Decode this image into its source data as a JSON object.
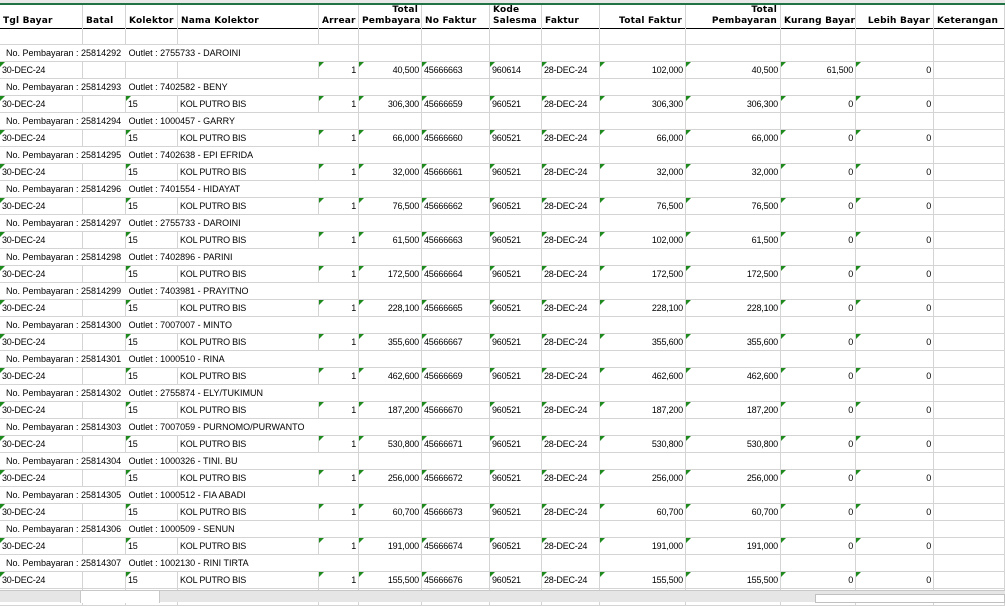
{
  "headers": [
    {
      "l1": "",
      "l2": "Tgl Bayar"
    },
    {
      "l1": "",
      "l2": "Batal"
    },
    {
      "l1": "",
      "l2": "Kolektor"
    },
    {
      "l1": "",
      "l2": "Nama Kolektor"
    },
    {
      "l1": "",
      "l2": "Arrear"
    },
    {
      "l1": "Total",
      "l2": "Pembayara"
    },
    {
      "l1": "",
      "l2": "No Faktur"
    },
    {
      "l1": "Kode",
      "l2": "Salesma"
    },
    {
      "l1": "",
      "l2": "Faktur"
    },
    {
      "l1": "",
      "l2": "Total Faktur"
    },
    {
      "l1": "Total",
      "l2": "Pembayaran"
    },
    {
      "l1": "",
      "l2": "Kurang Bayar"
    },
    {
      "l1": "",
      "l2": "Lebih Bayar"
    },
    {
      "l1": "",
      "l2": "Keterangan"
    }
  ],
  "label_prefix": "No. Pembayaran : ",
  "outlet_prefix": "Outlet : ",
  "records": [
    {
      "no": "25814292",
      "outlet": "2755733 - DAROINI",
      "tgl": "30-DEC-24",
      "kol": "",
      "nama": "",
      "arrear": "1",
      "bayar": "40,500",
      "faktur": "45666663",
      "sales": "960614",
      "tglf": "28-DEC-24",
      "tf": "102,000",
      "tp": "40,500",
      "kurang": "61,500",
      "lebih": "0"
    },
    {
      "no": "25814293",
      "outlet": "7402582 - BENY",
      "tgl": "30-DEC-24",
      "kol": "15",
      "nama": "KOL PUTRO BIS",
      "arrear": "1",
      "bayar": "306,300",
      "faktur": "45666659",
      "sales": "960521",
      "tglf": "28-DEC-24",
      "tf": "306,300",
      "tp": "306,300",
      "kurang": "0",
      "lebih": "0"
    },
    {
      "no": "25814294",
      "outlet": "1000457 - GARRY",
      "tgl": "30-DEC-24",
      "kol": "15",
      "nama": "KOL PUTRO BIS",
      "arrear": "1",
      "bayar": "66,000",
      "faktur": "45666660",
      "sales": "960521",
      "tglf": "28-DEC-24",
      "tf": "66,000",
      "tp": "66,000",
      "kurang": "0",
      "lebih": "0"
    },
    {
      "no": "25814295",
      "outlet": "7402638 - EPI EFRIDA",
      "tgl": "30-DEC-24",
      "kol": "15",
      "nama": "KOL PUTRO BIS",
      "arrear": "1",
      "bayar": "32,000",
      "faktur": "45666661",
      "sales": "960521",
      "tglf": "28-DEC-24",
      "tf": "32,000",
      "tp": "32,000",
      "kurang": "0",
      "lebih": "0"
    },
    {
      "no": "25814296",
      "outlet": "7401554 - HIDAYAT",
      "tgl": "30-DEC-24",
      "kol": "15",
      "nama": "KOL PUTRO BIS",
      "arrear": "1",
      "bayar": "76,500",
      "faktur": "45666662",
      "sales": "960521",
      "tglf": "28-DEC-24",
      "tf": "76,500",
      "tp": "76,500",
      "kurang": "0",
      "lebih": "0"
    },
    {
      "no": "25814297",
      "outlet": "2755733 - DAROINI",
      "tgl": "30-DEC-24",
      "kol": "15",
      "nama": "KOL PUTRO BIS",
      "arrear": "1",
      "bayar": "61,500",
      "faktur": "45666663",
      "sales": "960521",
      "tglf": "28-DEC-24",
      "tf": "102,000",
      "tp": "61,500",
      "kurang": "0",
      "lebih": "0"
    },
    {
      "no": "25814298",
      "outlet": "7402896 - PARINI",
      "tgl": "30-DEC-24",
      "kol": "15",
      "nama": "KOL PUTRO BIS",
      "arrear": "1",
      "bayar": "172,500",
      "faktur": "45666664",
      "sales": "960521",
      "tglf": "28-DEC-24",
      "tf": "172,500",
      "tp": "172,500",
      "kurang": "0",
      "lebih": "0"
    },
    {
      "no": "25814299",
      "outlet": "7403981 - PRAYITNO",
      "tgl": "30-DEC-24",
      "kol": "15",
      "nama": "KOL PUTRO BIS",
      "arrear": "1",
      "bayar": "228,100",
      "faktur": "45666665",
      "sales": "960521",
      "tglf": "28-DEC-24",
      "tf": "228,100",
      "tp": "228,100",
      "kurang": "0",
      "lebih": "0"
    },
    {
      "no": "25814300",
      "outlet": "7007007 - MINTO",
      "tgl": "30-DEC-24",
      "kol": "15",
      "nama": "KOL PUTRO BIS",
      "arrear": "1",
      "bayar": "355,600",
      "faktur": "45666667",
      "sales": "960521",
      "tglf": "28-DEC-24",
      "tf": "355,600",
      "tp": "355,600",
      "kurang": "0",
      "lebih": "0"
    },
    {
      "no": "25814301",
      "outlet": "1000510 - RINA",
      "tgl": "30-DEC-24",
      "kol": "15",
      "nama": "KOL PUTRO BIS",
      "arrear": "1",
      "bayar": "462,600",
      "faktur": "45666669",
      "sales": "960521",
      "tglf": "28-DEC-24",
      "tf": "462,600",
      "tp": "462,600",
      "kurang": "0",
      "lebih": "0"
    },
    {
      "no": "25814302",
      "outlet": "2755874 - ELY/TUKIMUN",
      "tgl": "30-DEC-24",
      "kol": "15",
      "nama": "KOL PUTRO BIS",
      "arrear": "1",
      "bayar": "187,200",
      "faktur": "45666670",
      "sales": "960521",
      "tglf": "28-DEC-24",
      "tf": "187,200",
      "tp": "187,200",
      "kurang": "0",
      "lebih": "0"
    },
    {
      "no": "25814303",
      "outlet": "7007059 - PURNOMO/PURWANTO",
      "tgl": "30-DEC-24",
      "kol": "15",
      "nama": "KOL PUTRO BIS",
      "arrear": "1",
      "bayar": "530,800",
      "faktur": "45666671",
      "sales": "960521",
      "tglf": "28-DEC-24",
      "tf": "530,800",
      "tp": "530,800",
      "kurang": "0",
      "lebih": "0"
    },
    {
      "no": "25814304",
      "outlet": "1000326 - TINI. BU",
      "tgl": "30-DEC-24",
      "kol": "15",
      "nama": "KOL PUTRO BIS",
      "arrear": "1",
      "bayar": "256,000",
      "faktur": "45666672",
      "sales": "960521",
      "tglf": "28-DEC-24",
      "tf": "256,000",
      "tp": "256,000",
      "kurang": "0",
      "lebih": "0"
    },
    {
      "no": "25814305",
      "outlet": "1000512 - FIA ABADI",
      "tgl": "30-DEC-24",
      "kol": "15",
      "nama": "KOL PUTRO BIS",
      "arrear": "1",
      "bayar": "60,700",
      "faktur": "45666673",
      "sales": "960521",
      "tglf": "28-DEC-24",
      "tf": "60,700",
      "tp": "60,700",
      "kurang": "0",
      "lebih": "0"
    },
    {
      "no": "25814306",
      "outlet": "1000509 - SENUN",
      "tgl": "30-DEC-24",
      "kol": "15",
      "nama": "KOL PUTRO BIS",
      "arrear": "1",
      "bayar": "191,000",
      "faktur": "45666674",
      "sales": "960521",
      "tglf": "28-DEC-24",
      "tf": "191,000",
      "tp": "191,000",
      "kurang": "0",
      "lebih": "0"
    },
    {
      "no": "25814307",
      "outlet": "1002130 - RINI TIRTA",
      "tgl": "30-DEC-24",
      "kol": "15",
      "nama": "KOL PUTRO BIS",
      "arrear": "1",
      "bayar": "155,500",
      "faktur": "45666676",
      "sales": "960521",
      "tglf": "28-DEC-24",
      "tf": "155,500",
      "tp": "155,500",
      "kurang": "0",
      "lebih": "0"
    }
  ],
  "colors": {
    "accent": "#217346",
    "flag": "#1e8a1e",
    "grid": "#d4d4d4"
  }
}
